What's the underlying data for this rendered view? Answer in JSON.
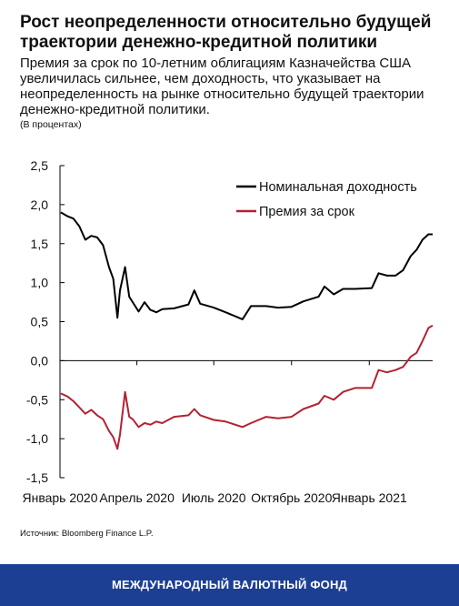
{
  "title": "Рост неопределенности относительно будущей траектории денежно-кредитной политики",
  "subtitle": "Премия за срок по 10-летним облигациям Казначейства США увеличилась сильнее, чем доходность, что указывает на неопределенность на рынке относительно будущей траектории денежно-кредитной политики.",
  "units": "(В процентах)",
  "source": "Источник: Bloomberg Finance L.P.",
  "footer": "МЕЖДУНАРОДНЫЙ ВАЛЮТНЫЙ ФОНД",
  "chart_data": {
    "type": "line",
    "title": "",
    "xlabel": "",
    "ylabel": "",
    "ylim": [
      -1.5,
      2.5
    ],
    "yticks": [
      "2,5",
      "2,0",
      "1,5",
      "1,0",
      "0,5",
      "0,0",
      "-0,5",
      "-1,0",
      "-1,5"
    ],
    "xlim": [
      "2020-01-01",
      "2021-03-17"
    ],
    "xtick_labels": [
      {
        "date": "2020-01-01",
        "label": "Январь 2020"
      },
      {
        "date": "2020-04-01",
        "label": "Апрель 2020"
      },
      {
        "date": "2020-07-01",
        "label": "Июль 2020"
      },
      {
        "date": "2020-10-01",
        "label": "Октябрь 2020"
      },
      {
        "date": "2021-01-01",
        "label": "Январь 2021"
      }
    ],
    "grid": false,
    "legend_position": "top-right",
    "series": [
      {
        "name": "Номинальная доходность",
        "color": "#000000",
        "x": [
          "2020-01-02",
          "2020-01-10",
          "2020-01-17",
          "2020-01-24",
          "2020-01-31",
          "2020-02-07",
          "2020-02-14",
          "2020-02-21",
          "2020-02-28",
          "2020-03-04",
          "2020-03-09",
          "2020-03-12",
          "2020-03-18",
          "2020-03-23",
          "2020-03-27",
          "2020-04-03",
          "2020-04-10",
          "2020-04-17",
          "2020-04-24",
          "2020-05-01",
          "2020-05-15",
          "2020-06-01",
          "2020-06-08",
          "2020-06-15",
          "2020-07-01",
          "2020-07-15",
          "2020-08-04",
          "2020-08-14",
          "2020-09-01",
          "2020-09-15",
          "2020-10-01",
          "2020-10-15",
          "2020-11-02",
          "2020-11-09",
          "2020-11-20",
          "2020-12-01",
          "2020-12-15",
          "2021-01-04",
          "2021-01-12",
          "2021-01-22",
          "2021-02-01",
          "2021-02-10",
          "2021-02-19",
          "2021-02-26",
          "2021-03-05",
          "2021-03-12",
          "2021-03-17"
        ],
        "values": [
          1.9,
          1.85,
          1.82,
          1.72,
          1.55,
          1.6,
          1.58,
          1.48,
          1.2,
          1.05,
          0.55,
          0.9,
          1.2,
          0.82,
          0.75,
          0.63,
          0.75,
          0.65,
          0.62,
          0.66,
          0.67,
          0.72,
          0.9,
          0.73,
          0.68,
          0.62,
          0.53,
          0.7,
          0.7,
          0.68,
          0.69,
          0.76,
          0.82,
          0.95,
          0.85,
          0.92,
          0.92,
          0.93,
          1.12,
          1.09,
          1.09,
          1.16,
          1.34,
          1.42,
          1.55,
          1.62,
          1.62
        ]
      },
      {
        "name": "Премия за срок",
        "color": "#b22234",
        "x": [
          "2020-01-02",
          "2020-01-10",
          "2020-01-17",
          "2020-01-24",
          "2020-01-31",
          "2020-02-07",
          "2020-02-14",
          "2020-02-21",
          "2020-02-28",
          "2020-03-04",
          "2020-03-09",
          "2020-03-12",
          "2020-03-18",
          "2020-03-23",
          "2020-03-27",
          "2020-04-03",
          "2020-04-10",
          "2020-04-17",
          "2020-04-24",
          "2020-05-01",
          "2020-05-15",
          "2020-06-01",
          "2020-06-08",
          "2020-06-15",
          "2020-07-01",
          "2020-07-15",
          "2020-08-04",
          "2020-08-14",
          "2020-09-01",
          "2020-09-15",
          "2020-10-01",
          "2020-10-15",
          "2020-11-02",
          "2020-11-09",
          "2020-11-20",
          "2020-12-01",
          "2020-12-15",
          "2021-01-04",
          "2021-01-12",
          "2021-01-22",
          "2021-02-01",
          "2021-02-10",
          "2021-02-19",
          "2021-02-26",
          "2021-03-05",
          "2021-03-12",
          "2021-03-17"
        ],
        "values": [
          -0.42,
          -0.46,
          -0.52,
          -0.6,
          -0.68,
          -0.63,
          -0.7,
          -0.75,
          -0.9,
          -0.98,
          -1.13,
          -0.95,
          -0.4,
          -0.72,
          -0.75,
          -0.85,
          -0.8,
          -0.82,
          -0.78,
          -0.8,
          -0.72,
          -0.7,
          -0.62,
          -0.7,
          -0.76,
          -0.78,
          -0.85,
          -0.8,
          -0.72,
          -0.74,
          -0.72,
          -0.62,
          -0.55,
          -0.45,
          -0.5,
          -0.4,
          -0.35,
          -0.35,
          -0.12,
          -0.15,
          -0.12,
          -0.08,
          0.05,
          0.1,
          0.25,
          0.42,
          0.45
        ]
      }
    ]
  }
}
